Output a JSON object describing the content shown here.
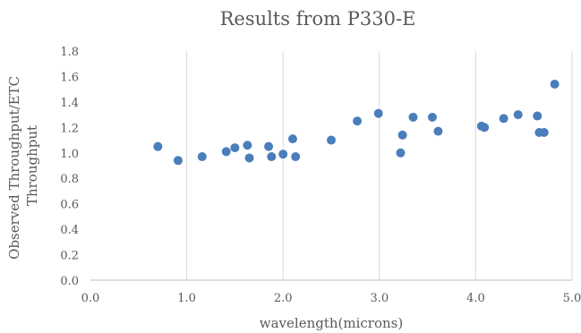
{
  "chart_data": {
    "type": "scatter",
    "title": "Results from P330-E",
    "xlabel": "wavelength(microns)",
    "ylabel": [
      "Observed Throughput/ETC",
      "Throughput"
    ],
    "xlim": [
      0.0,
      5.0
    ],
    "ylim": [
      0.0,
      1.8
    ],
    "xticks": [
      "0.0",
      "1.0",
      "2.0",
      "3.0",
      "4.0",
      "5.0"
    ],
    "yticks": [
      "0.0",
      "0.2",
      "0.4",
      "0.6",
      "0.8",
      "1.0",
      "1.2",
      "1.4",
      "1.6",
      "1.8"
    ],
    "grid": "vertical",
    "color": "#4a7ebb",
    "series": [
      {
        "points": [
          [
            0.7,
            1.05
          ],
          [
            0.91,
            0.94
          ],
          [
            1.16,
            0.97
          ],
          [
            1.41,
            1.01
          ],
          [
            1.5,
            1.04
          ],
          [
            1.63,
            1.06
          ],
          [
            1.65,
            0.96
          ],
          [
            1.85,
            1.05
          ],
          [
            1.88,
            0.97
          ],
          [
            2.0,
            0.99
          ],
          [
            2.1,
            1.11
          ],
          [
            2.13,
            0.97
          ],
          [
            2.5,
            1.1
          ],
          [
            2.77,
            1.25
          ],
          [
            2.99,
            1.31
          ],
          [
            3.22,
            1.0
          ],
          [
            3.24,
            1.14
          ],
          [
            3.35,
            1.28
          ],
          [
            3.55,
            1.28
          ],
          [
            3.61,
            1.17
          ],
          [
            4.06,
            1.21
          ],
          [
            4.09,
            1.2
          ],
          [
            4.29,
            1.27
          ],
          [
            4.44,
            1.3
          ],
          [
            4.64,
            1.29
          ],
          [
            4.66,
            1.16
          ],
          [
            4.71,
            1.16
          ],
          [
            4.82,
            1.54
          ]
        ]
      }
    ]
  }
}
